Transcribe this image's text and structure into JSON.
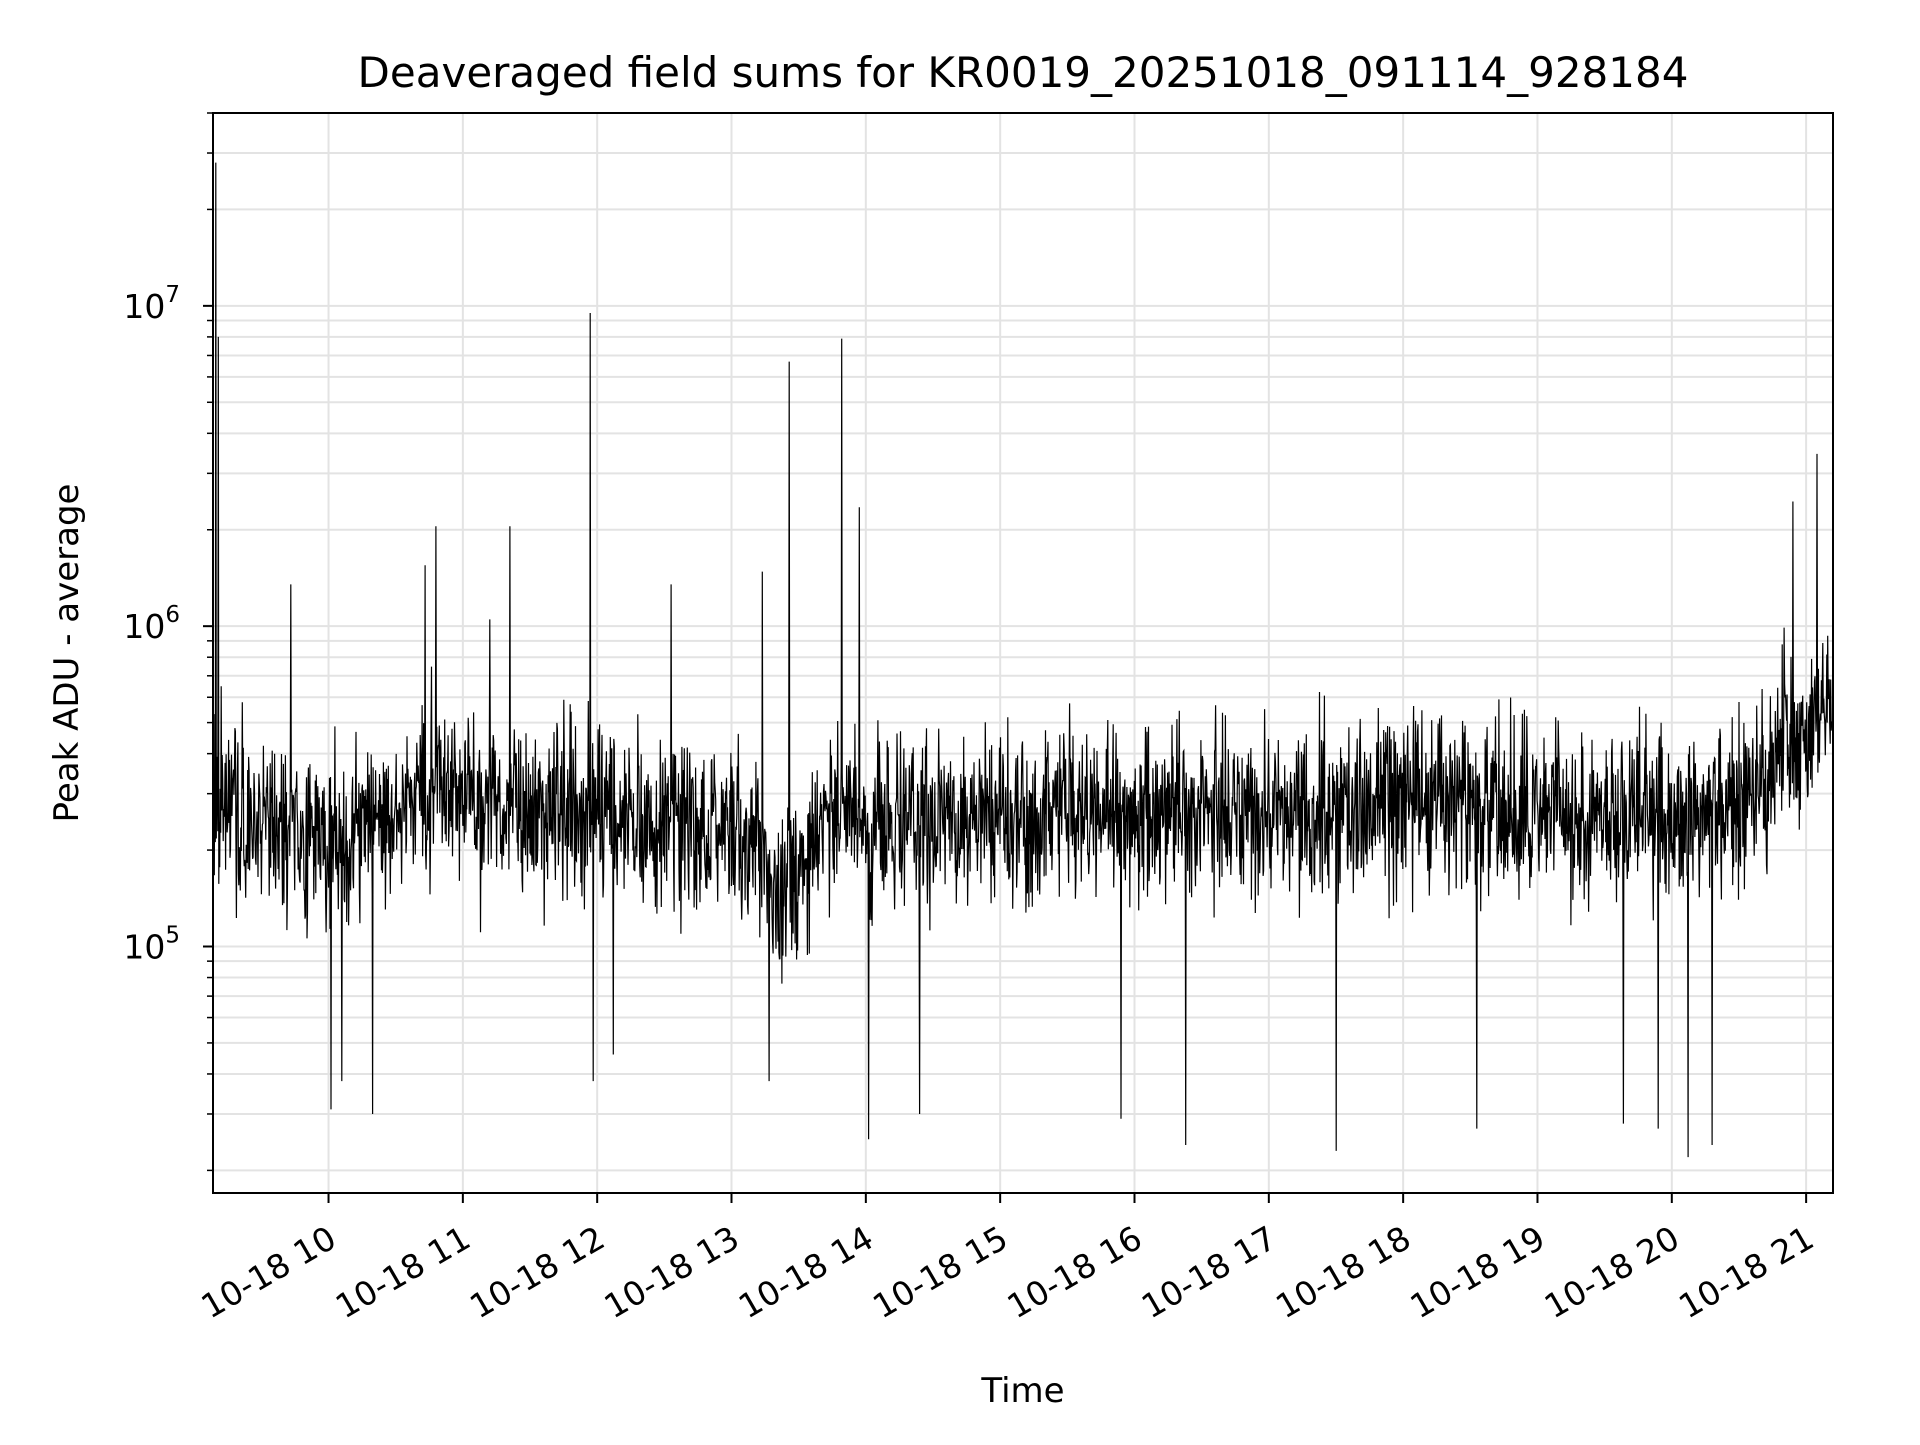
{
  "chart_data": {
    "type": "line",
    "title": "Deaveraged field sums for KR0019_20251018_091114_928184",
    "xlabel": "Time",
    "ylabel": "Peak ADU - average",
    "yscale": "log",
    "ylim": [
      17000,
      40000000
    ],
    "xlim_hours": [
      9.14,
      21.2
    ],
    "grid": true,
    "line_color": "#000000",
    "grid_color": "#e3e3e3",
    "x_ticks": [
      {
        "hour": 10,
        "label": "10-18 10"
      },
      {
        "hour": 11,
        "label": "10-18 11"
      },
      {
        "hour": 12,
        "label": "10-18 12"
      },
      {
        "hour": 13,
        "label": "10-18 13"
      },
      {
        "hour": 14,
        "label": "10-18 14"
      },
      {
        "hour": 15,
        "label": "10-18 15"
      },
      {
        "hour": 16,
        "label": "10-18 16"
      },
      {
        "hour": 17,
        "label": "10-18 17"
      },
      {
        "hour": 18,
        "label": "10-18 18"
      },
      {
        "hour": 19,
        "label": "10-18 19"
      },
      {
        "hour": 20,
        "label": "10-18 20"
      },
      {
        "hour": 21,
        "label": "10-18 21"
      }
    ],
    "y_ticks": [
      {
        "value": 100000,
        "base": "10",
        "exponent": "5"
      },
      {
        "value": 1000000,
        "base": "10",
        "exponent": "6"
      },
      {
        "value": 10000000,
        "base": "10",
        "exponent": "7"
      }
    ],
    "series": [
      {
        "name": "deaveraged_field_sum",
        "baseline": [
          [
            9.15,
            270000
          ],
          [
            9.5,
            260000
          ],
          [
            9.8,
            230000
          ],
          [
            10.0,
            210000
          ],
          [
            10.3,
            230000
          ],
          [
            10.6,
            290000
          ],
          [
            10.85,
            330000
          ],
          [
            11.1,
            300000
          ],
          [
            11.5,
            260000
          ],
          [
            11.9,
            270000
          ],
          [
            12.1,
            250000
          ],
          [
            12.5,
            240000
          ],
          [
            12.9,
            240000
          ],
          [
            13.2,
            220000
          ],
          [
            13.35,
            130000
          ],
          [
            13.5,
            190000
          ],
          [
            13.8,
            260000
          ],
          [
            14.1,
            240000
          ],
          [
            14.6,
            240000
          ],
          [
            15.0,
            250000
          ],
          [
            15.5,
            260000
          ],
          [
            16.0,
            260000
          ],
          [
            16.5,
            270000
          ],
          [
            17.0,
            265000
          ],
          [
            17.5,
            270000
          ],
          [
            18.0,
            290000
          ],
          [
            18.5,
            280000
          ],
          [
            19.0,
            260000
          ],
          [
            19.5,
            260000
          ],
          [
            20.0,
            260000
          ],
          [
            20.4,
            280000
          ],
          [
            20.7,
            300000
          ],
          [
            20.85,
            500000
          ],
          [
            20.95,
            380000
          ],
          [
            21.1,
            550000
          ],
          [
            21.2,
            700000
          ]
        ],
        "spikes": [
          [
            9.16,
            28000000
          ],
          [
            9.18,
            8000000
          ],
          [
            9.72,
            1350000
          ],
          [
            10.8,
            2050000
          ],
          [
            11.35,
            2050000
          ],
          [
            11.95,
            9500000
          ],
          [
            12.55,
            1350000
          ],
          [
            13.23,
            1480000
          ],
          [
            13.43,
            6700000
          ],
          [
            13.82,
            7900000
          ],
          [
            13.95,
            2350000
          ],
          [
            20.9,
            2450000
          ],
          [
            21.08,
            3450000
          ],
          [
            10.72,
            1550000
          ],
          [
            11.2,
            1050000
          ]
        ],
        "dips": [
          [
            10.02,
            31000
          ],
          [
            10.1,
            38000
          ],
          [
            10.33,
            30000
          ],
          [
            11.97,
            38000
          ],
          [
            12.12,
            46000
          ],
          [
            13.28,
            38000
          ],
          [
            14.02,
            25000
          ],
          [
            14.4,
            30000
          ],
          [
            15.9,
            29000
          ],
          [
            16.38,
            24000
          ],
          [
            17.5,
            23000
          ],
          [
            18.55,
            27000
          ],
          [
            19.64,
            28000
          ],
          [
            19.9,
            27000
          ],
          [
            20.12,
            22000
          ],
          [
            20.3,
            24000
          ]
        ]
      }
    ]
  }
}
